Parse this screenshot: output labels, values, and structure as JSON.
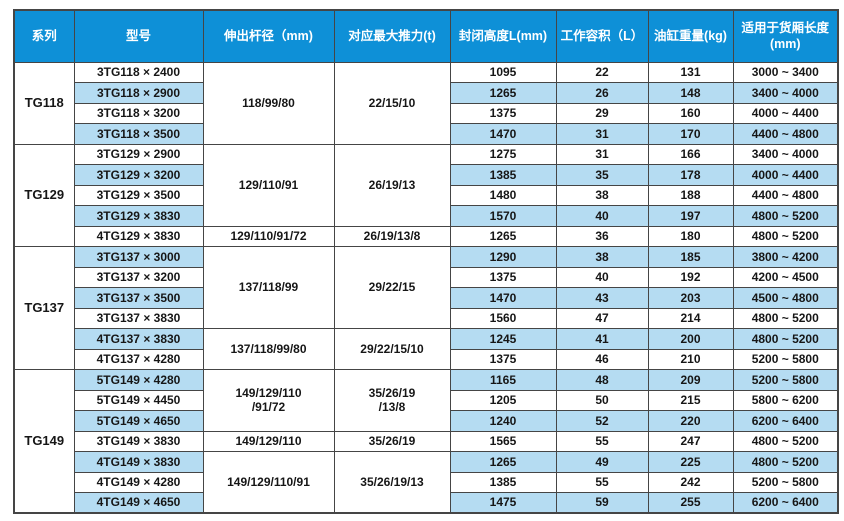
{
  "table": {
    "headers": [
      "系列",
      "型号",
      "伸出杆径（mm)",
      "对应最大推力(t)",
      "封闭高度L(mm)",
      "工作容积（L）",
      "油缸重量(kg)",
      "适用于货厢长度(mm)"
    ],
    "colors": {
      "header_bg": "#0e90d7",
      "band_bg": "#b5dcf2",
      "border": "#454545",
      "header_text": "#ffffff",
      "cell_text": "#161616"
    },
    "groups": [
      {
        "series": "TG118",
        "specs": [
          {
            "rod": "118/99/80",
            "thrust": "22/15/10",
            "span": 4
          }
        ],
        "rows": [
          {
            "model": "3TG118 × 2400",
            "closed_height": "1095",
            "volume": "22",
            "weight": "131",
            "box_length": "3000 ~ 3400"
          },
          {
            "model": "3TG118 × 2900",
            "closed_height": "1265",
            "volume": "26",
            "weight": "148",
            "box_length": "3400 ~ 4000"
          },
          {
            "model": "3TG118 × 3200",
            "closed_height": "1375",
            "volume": "29",
            "weight": "160",
            "box_length": "4000 ~ 4400"
          },
          {
            "model": "3TG118 × 3500",
            "closed_height": "1470",
            "volume": "31",
            "weight": "170",
            "box_length": "4400 ~ 4800"
          }
        ]
      },
      {
        "series": "TG129",
        "specs": [
          {
            "rod": "129/110/91",
            "thrust": "26/19/13",
            "span": 4
          },
          {
            "rod": "129/110/91/72",
            "thrust": "26/19/13/8",
            "span": 1
          }
        ],
        "rows": [
          {
            "model": "3TG129 × 2900",
            "closed_height": "1275",
            "volume": "31",
            "weight": "166",
            "box_length": "3400 ~ 4000"
          },
          {
            "model": "3TG129 × 3200",
            "closed_height": "1385",
            "volume": "35",
            "weight": "178",
            "box_length": "4000 ~ 4400"
          },
          {
            "model": "3TG129 × 3500",
            "closed_height": "1480",
            "volume": "38",
            "weight": "188",
            "box_length": "4400 ~ 4800"
          },
          {
            "model": "3TG129 × 3830",
            "closed_height": "1570",
            "volume": "40",
            "weight": "197",
            "box_length": "4800 ~ 5200"
          },
          {
            "model": "4TG129 × 3830",
            "closed_height": "1265",
            "volume": "36",
            "weight": "180",
            "box_length": "4800 ~ 5200"
          }
        ]
      },
      {
        "series": "TG137",
        "specs": [
          {
            "rod": "137/118/99",
            "thrust": "29/22/15",
            "span": 4
          },
          {
            "rod": "137/118/99/80",
            "thrust": "29/22/15/10",
            "span": 2
          }
        ],
        "rows": [
          {
            "model": "3TG137 × 3000",
            "closed_height": "1290",
            "volume": "38",
            "weight": "185",
            "box_length": "3800 ~ 4200"
          },
          {
            "model": "3TG137 × 3200",
            "closed_height": "1375",
            "volume": "40",
            "weight": "192",
            "box_length": "4200 ~ 4500"
          },
          {
            "model": "3TG137 × 3500",
            "closed_height": "1470",
            "volume": "43",
            "weight": "203",
            "box_length": "4500 ~ 4800"
          },
          {
            "model": "3TG137 × 3830",
            "closed_height": "1560",
            "volume": "47",
            "weight": "214",
            "box_length": "4800 ~ 5200"
          },
          {
            "model": "4TG137 × 3830",
            "closed_height": "1245",
            "volume": "41",
            "weight": "200",
            "box_length": "4800 ~ 5200"
          },
          {
            "model": "4TG137 × 4280",
            "closed_height": "1375",
            "volume": "46",
            "weight": "210",
            "box_length": "5200 ~ 5800"
          }
        ]
      },
      {
        "series": "TG149",
        "specs": [
          {
            "rod": "149/129/110\n/91/72",
            "thrust": "35/26/19\n/13/8",
            "span": 3
          },
          {
            "rod": "149/129/110",
            "thrust": "35/26/19",
            "span": 1
          },
          {
            "rod": "149/129/110/91",
            "thrust": "35/26/19/13",
            "span": 3
          }
        ],
        "rows": [
          {
            "model": "5TG149 × 4280",
            "closed_height": "1165",
            "volume": "48",
            "weight": "209",
            "box_length": "5200 ~ 5800"
          },
          {
            "model": "5TG149 × 4450",
            "closed_height": "1205",
            "volume": "50",
            "weight": "215",
            "box_length": "5800 ~ 6200"
          },
          {
            "model": "5TG149 × 4650",
            "closed_height": "1240",
            "volume": "52",
            "weight": "220",
            "box_length": "6200 ~ 6400"
          },
          {
            "model": "3TG149 × 3830",
            "closed_height": "1565",
            "volume": "55",
            "weight": "247",
            "box_length": "4800 ~ 5200"
          },
          {
            "model": "4TG149 × 3830",
            "closed_height": "1265",
            "volume": "49",
            "weight": "225",
            "box_length": "4800 ~ 5200"
          },
          {
            "model": "4TG149 × 4280",
            "closed_height": "1385",
            "volume": "55",
            "weight": "242",
            "box_length": "5200 ~ 5800"
          },
          {
            "model": "4TG149 × 4650",
            "closed_height": "1475",
            "volume": "59",
            "weight": "255",
            "box_length": "6200 ~ 6400"
          }
        ]
      }
    ]
  }
}
